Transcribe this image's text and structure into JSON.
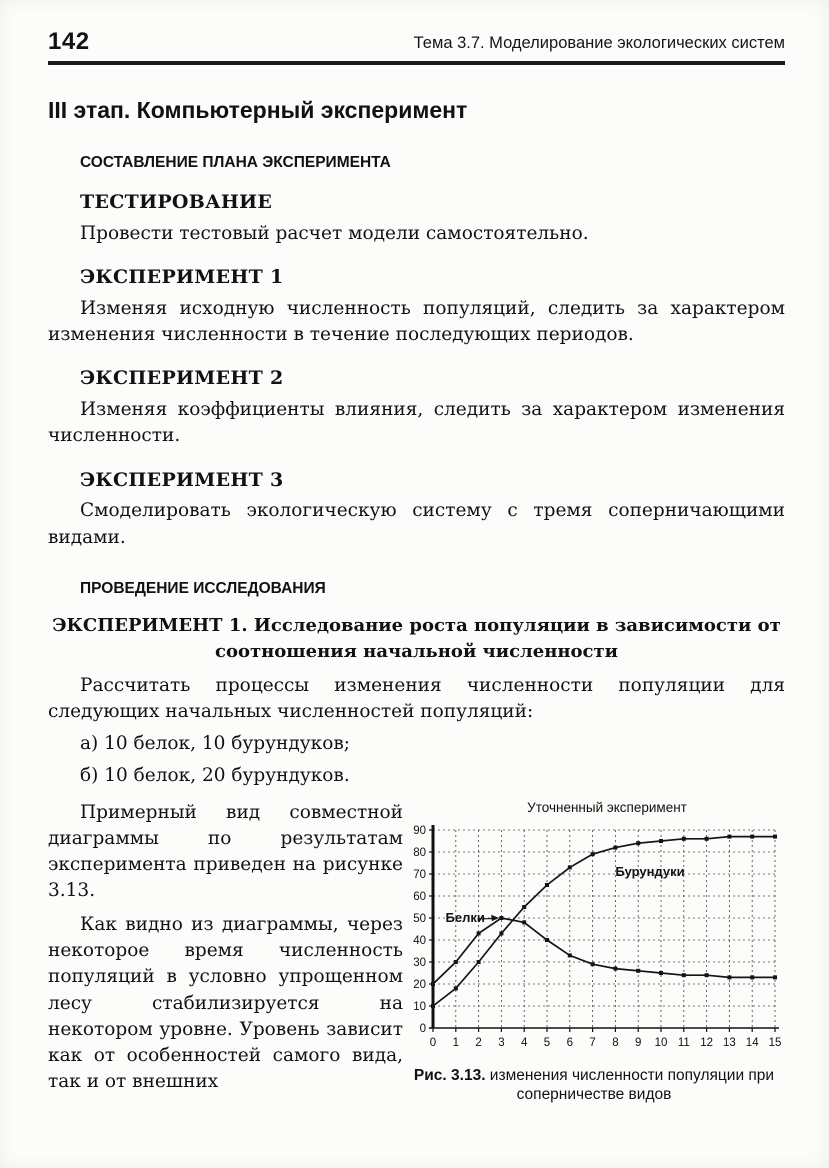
{
  "page": {
    "number": "142",
    "running_title": "Тема 3.7. Моделирование экологических систем"
  },
  "main": {
    "stage_title": "III этап. Компьютерный эксперимент",
    "plan_heading": "СОСТАВЛЕНИЕ ПЛАНА ЭКСПЕРИМЕНТА",
    "testing_heading": "ТЕСТИРОВАНИЕ",
    "testing_text": "Провести тестовый расчет модели самостоятельно.",
    "exp1_heading": "ЭКСПЕРИМЕНТ 1",
    "exp1_text": "Изменяя исходную численность популяций, следить за характером изменения численности в течение последующих периодов.",
    "exp2_heading": "ЭКСПЕРИМЕНТ 2",
    "exp2_text": "Изменяя коэффициенты влияния, следить за характером изменения численности.",
    "exp3_heading": "ЭКСПЕРИМЕНТ 3",
    "exp3_text": "Смоделировать экологическую систему с тремя соперничающими видами.",
    "research_heading": "ПРОВЕДЕНИЕ ИССЛЕДОВАНИЯ",
    "exp1_research_heading": "ЭКСПЕРИМЕНТ 1. Исследование роста популяции в зависимости от соотношения начальной численности",
    "calc_text": "Рассчитать процессы изменения численности популяции для следующих начальных численностей популяций:",
    "item_a": "а) 10 белок, 10 бурундуков;",
    "item_b": "б) 10 белок, 20 бурундуков.",
    "wrap_para_1": "Примерный вид совместной диаграммы по результатам эксперимента приведен на рисунке 3.13.",
    "wrap_para_2": "Как видно из диаграммы, через некоторое время численность популяций в условно упрощенном лесу стабилизируется на некотором уровне. Уровень зависит как от особенностей самого вида, так и от внешних"
  },
  "chart_data": {
    "type": "line",
    "title": "Уточненный эксперимент",
    "x": [
      0,
      1,
      2,
      3,
      4,
      5,
      6,
      7,
      8,
      9,
      10,
      11,
      12,
      13,
      14,
      15
    ],
    "series": [
      {
        "name": "Белки",
        "values": [
          20,
          30,
          43,
          50,
          48,
          40,
          33,
          29,
          27,
          26,
          25,
          24,
          24,
          23,
          23,
          23
        ]
      },
      {
        "name": "Бурундуки",
        "values": [
          10,
          18,
          30,
          43,
          55,
          65,
          73,
          79,
          82,
          84,
          85,
          86,
          86,
          87,
          87,
          87
        ]
      }
    ],
    "xlabel": "",
    "ylabel": "",
    "xlim": [
      0,
      15
    ],
    "ylim": [
      0,
      90
    ],
    "ytick_step": 10,
    "xtick_step": 1,
    "grid": "dashed-both",
    "legend": "inline-labels",
    "line_color": "#141414",
    "caption_bold": "Рис. 3.13.",
    "caption_rest": " изменения численности популяции при соперничестве видов"
  }
}
